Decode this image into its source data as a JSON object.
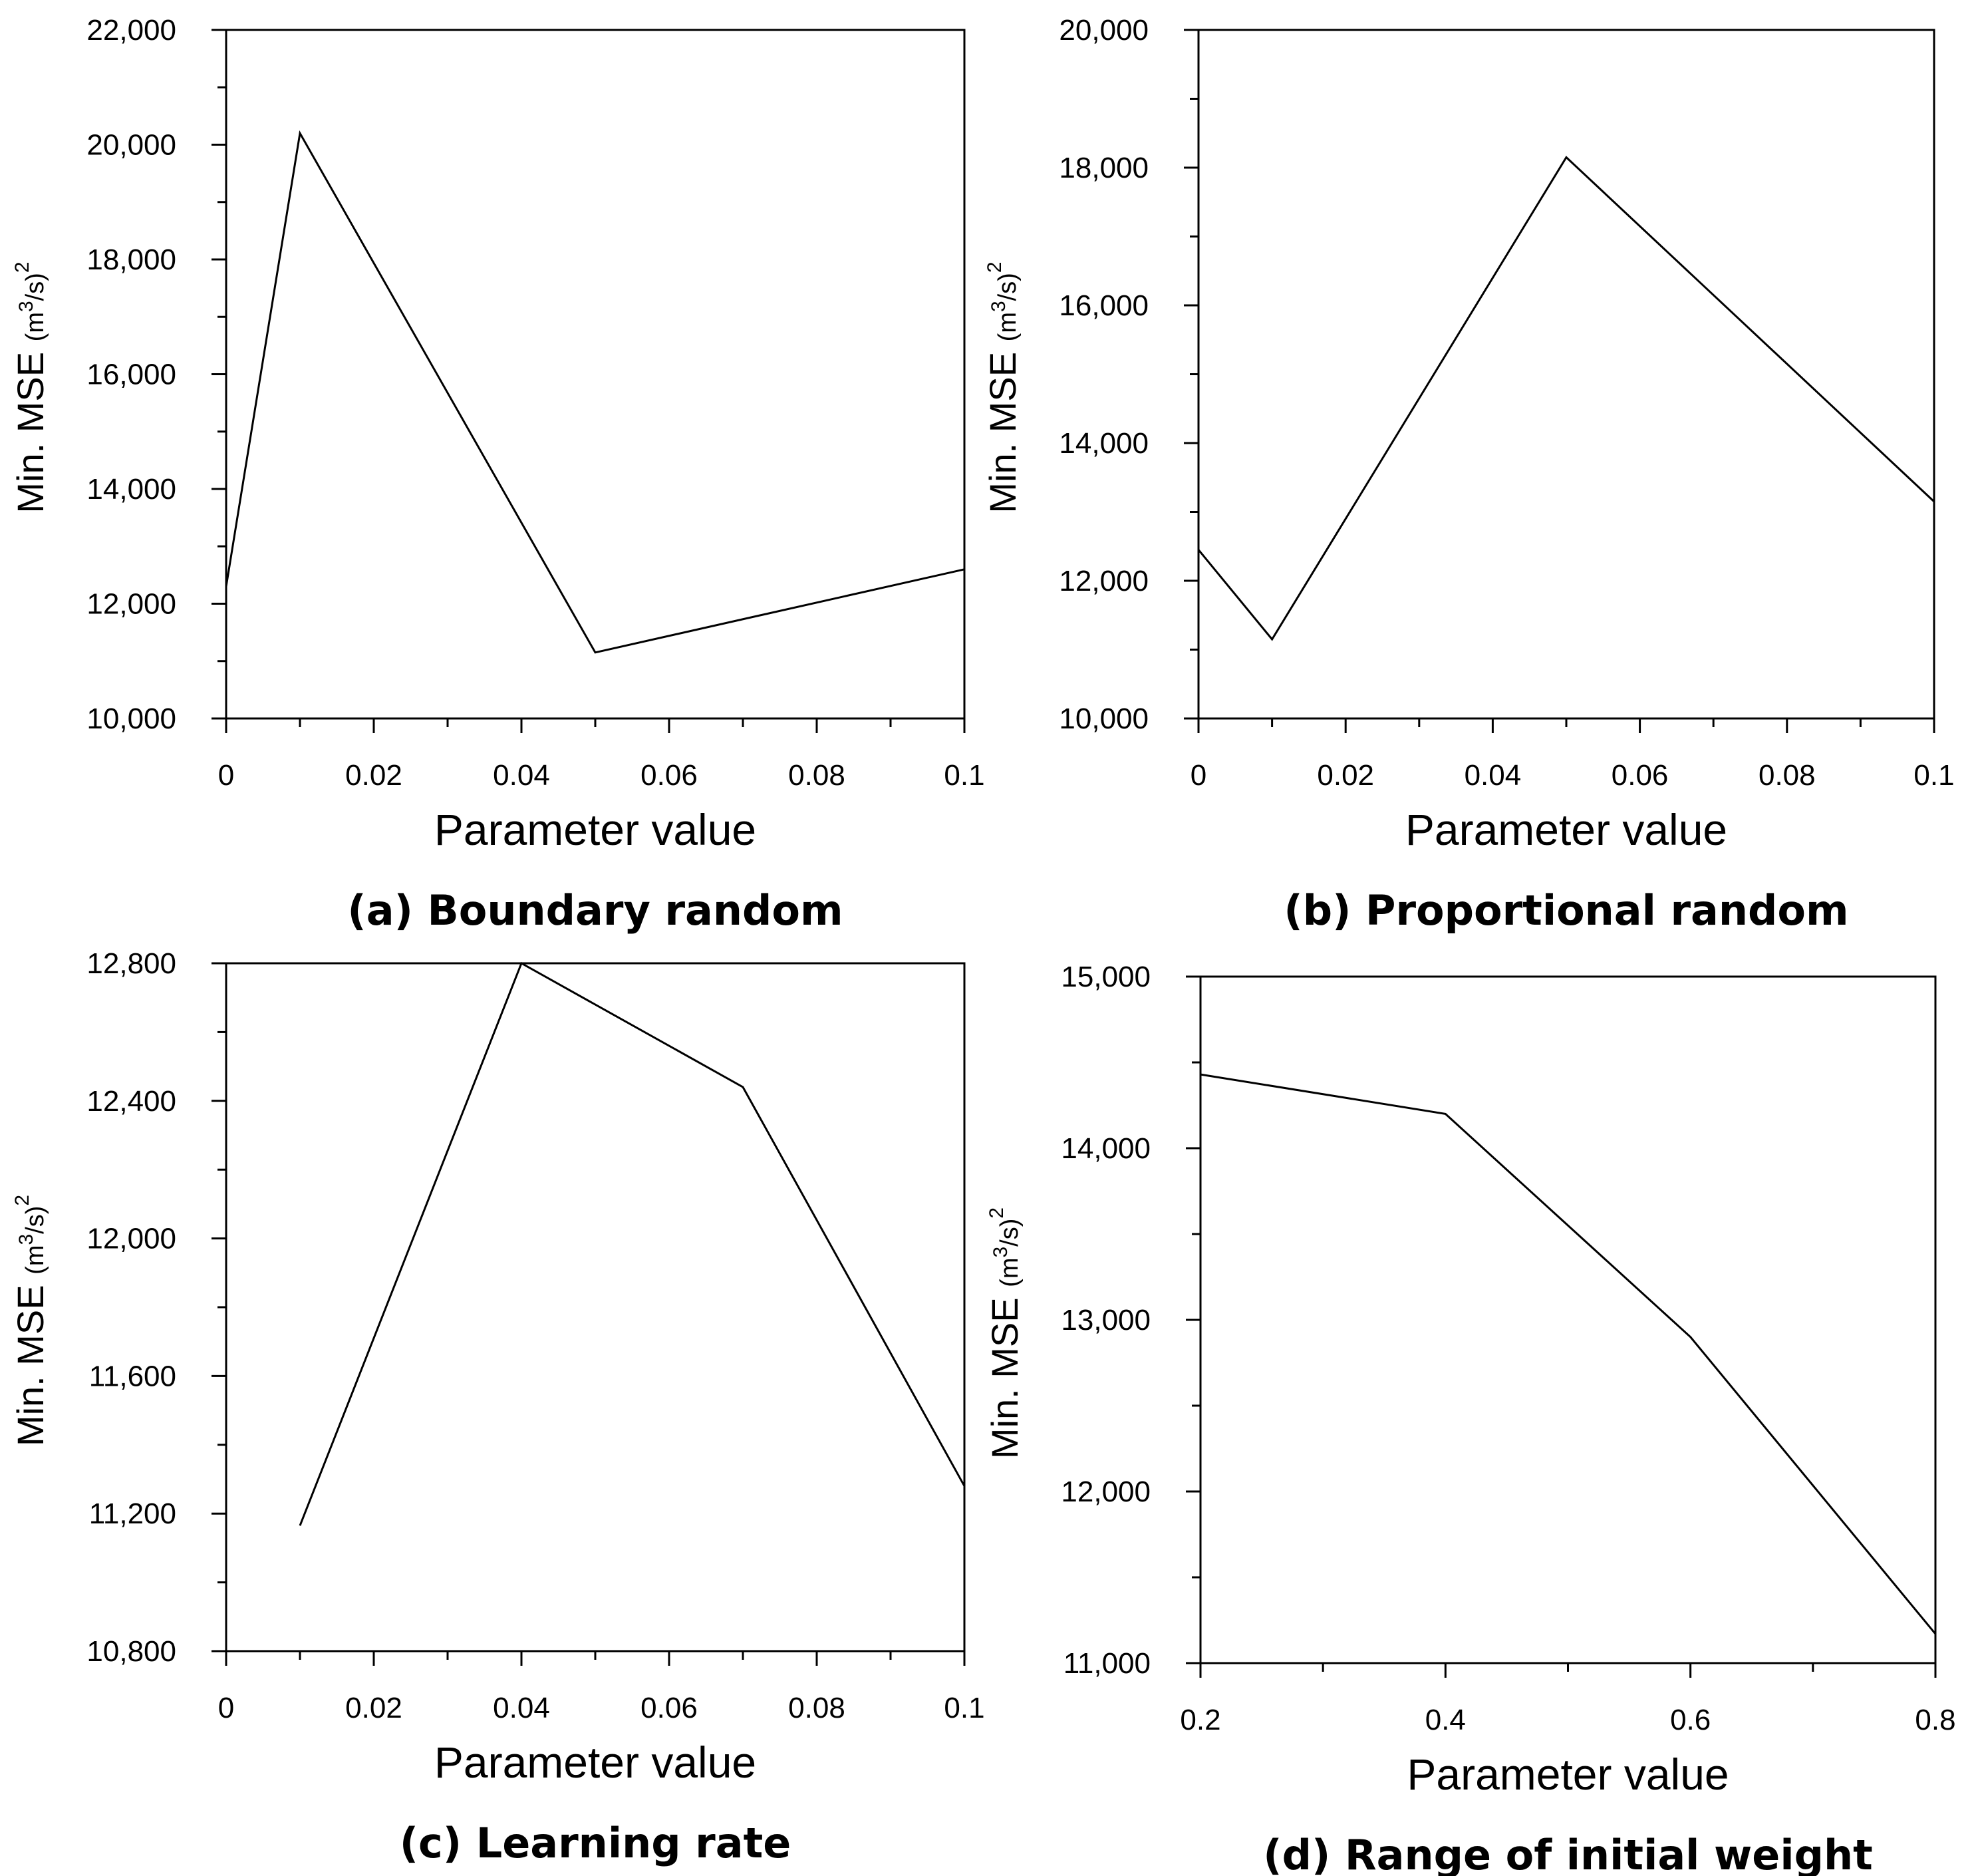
{
  "figure": {
    "background": "#ffffff",
    "line_color": "#000000"
  },
  "chart_data": [
    {
      "type": "line",
      "caption": "(a) Boundary random",
      "xlabel": "Parameter value",
      "ylabel": "Min. MSE",
      "ylabel_unit": "(m3/s)2",
      "xlim": [
        0,
        0.1
      ],
      "ylim": [
        10000,
        22000
      ],
      "x_ticks": [
        0,
        0.02,
        0.04,
        0.06,
        0.08,
        0.1
      ],
      "x_tick_labels": [
        "0",
        "0.02",
        "0.04",
        "0.06",
        "0.08",
        "0.1"
      ],
      "y_ticks": [
        10000,
        12000,
        14000,
        16000,
        18000,
        20000,
        22000
      ],
      "y_tick_labels": [
        "10,000",
        "12,000",
        "14,000",
        "16,000",
        "18,000",
        "20,000",
        "22,000"
      ],
      "x": [
        0,
        0.01,
        0.05,
        0.1
      ],
      "y": [
        12300,
        20200,
        11150,
        12600
      ]
    },
    {
      "type": "line",
      "caption": "(b) Proportional random",
      "xlabel": "Parameter value",
      "ylabel": "Min. MSE",
      "ylabel_unit": "(m3/s)2",
      "xlim": [
        0,
        0.1
      ],
      "ylim": [
        10000,
        20000
      ],
      "x_ticks": [
        0,
        0.02,
        0.04,
        0.06,
        0.08,
        0.1
      ],
      "x_tick_labels": [
        "0",
        "0.02",
        "0.04",
        "0.06",
        "0.08",
        "0.1"
      ],
      "y_ticks": [
        10000,
        12000,
        14000,
        16000,
        18000,
        20000
      ],
      "y_tick_labels": [
        "10,000",
        "12,000",
        "14,000",
        "16,000",
        "18,000",
        "20,000"
      ],
      "x": [
        0,
        0.01,
        0.05,
        0.1
      ],
      "y": [
        12450,
        11150,
        18150,
        13150
      ]
    },
    {
      "type": "line",
      "caption": "(c) Learning rate",
      "xlabel": "Parameter value",
      "ylabel": "Min. MSE",
      "ylabel_unit": "(m3/s)2",
      "xlim": [
        0,
        0.1
      ],
      "ylim": [
        10800,
        12800
      ],
      "x_ticks": [
        0,
        0.02,
        0.04,
        0.06,
        0.08,
        0.1
      ],
      "x_tick_labels": [
        "0",
        "0.02",
        "0.04",
        "0.06",
        "0.08",
        "0.1"
      ],
      "y_ticks": [
        10800,
        11200,
        11600,
        12000,
        12400,
        12800
      ],
      "y_tick_labels": [
        "10,800",
        "11,200",
        "11,600",
        "12,000",
        "12,400",
        "12,800"
      ],
      "x": [
        0.01,
        0.04,
        0.07,
        0.1
      ],
      "y": [
        11165,
        12800,
        12440,
        11280
      ]
    },
    {
      "type": "line",
      "caption": "(d) Range of initial weight",
      "xlabel": "Parameter value",
      "ylabel": "Min. MSE",
      "ylabel_unit": "(m3/s)2",
      "xlim": [
        0.2,
        0.8
      ],
      "ylim": [
        11000,
        15000
      ],
      "x_ticks": [
        0.2,
        0.4,
        0.6,
        0.8
      ],
      "x_tick_labels": [
        "0.2",
        "0.4",
        "0.6",
        "0.8"
      ],
      "y_ticks": [
        11000,
        12000,
        13000,
        14000,
        15000
      ],
      "y_tick_labels": [
        "11,000",
        "12,000",
        "13,000",
        "14,000",
        "15,000"
      ],
      "x": [
        0.2,
        0.4,
        0.6,
        0.8
      ],
      "y": [
        14430,
        14200,
        12900,
        11170
      ]
    }
  ]
}
